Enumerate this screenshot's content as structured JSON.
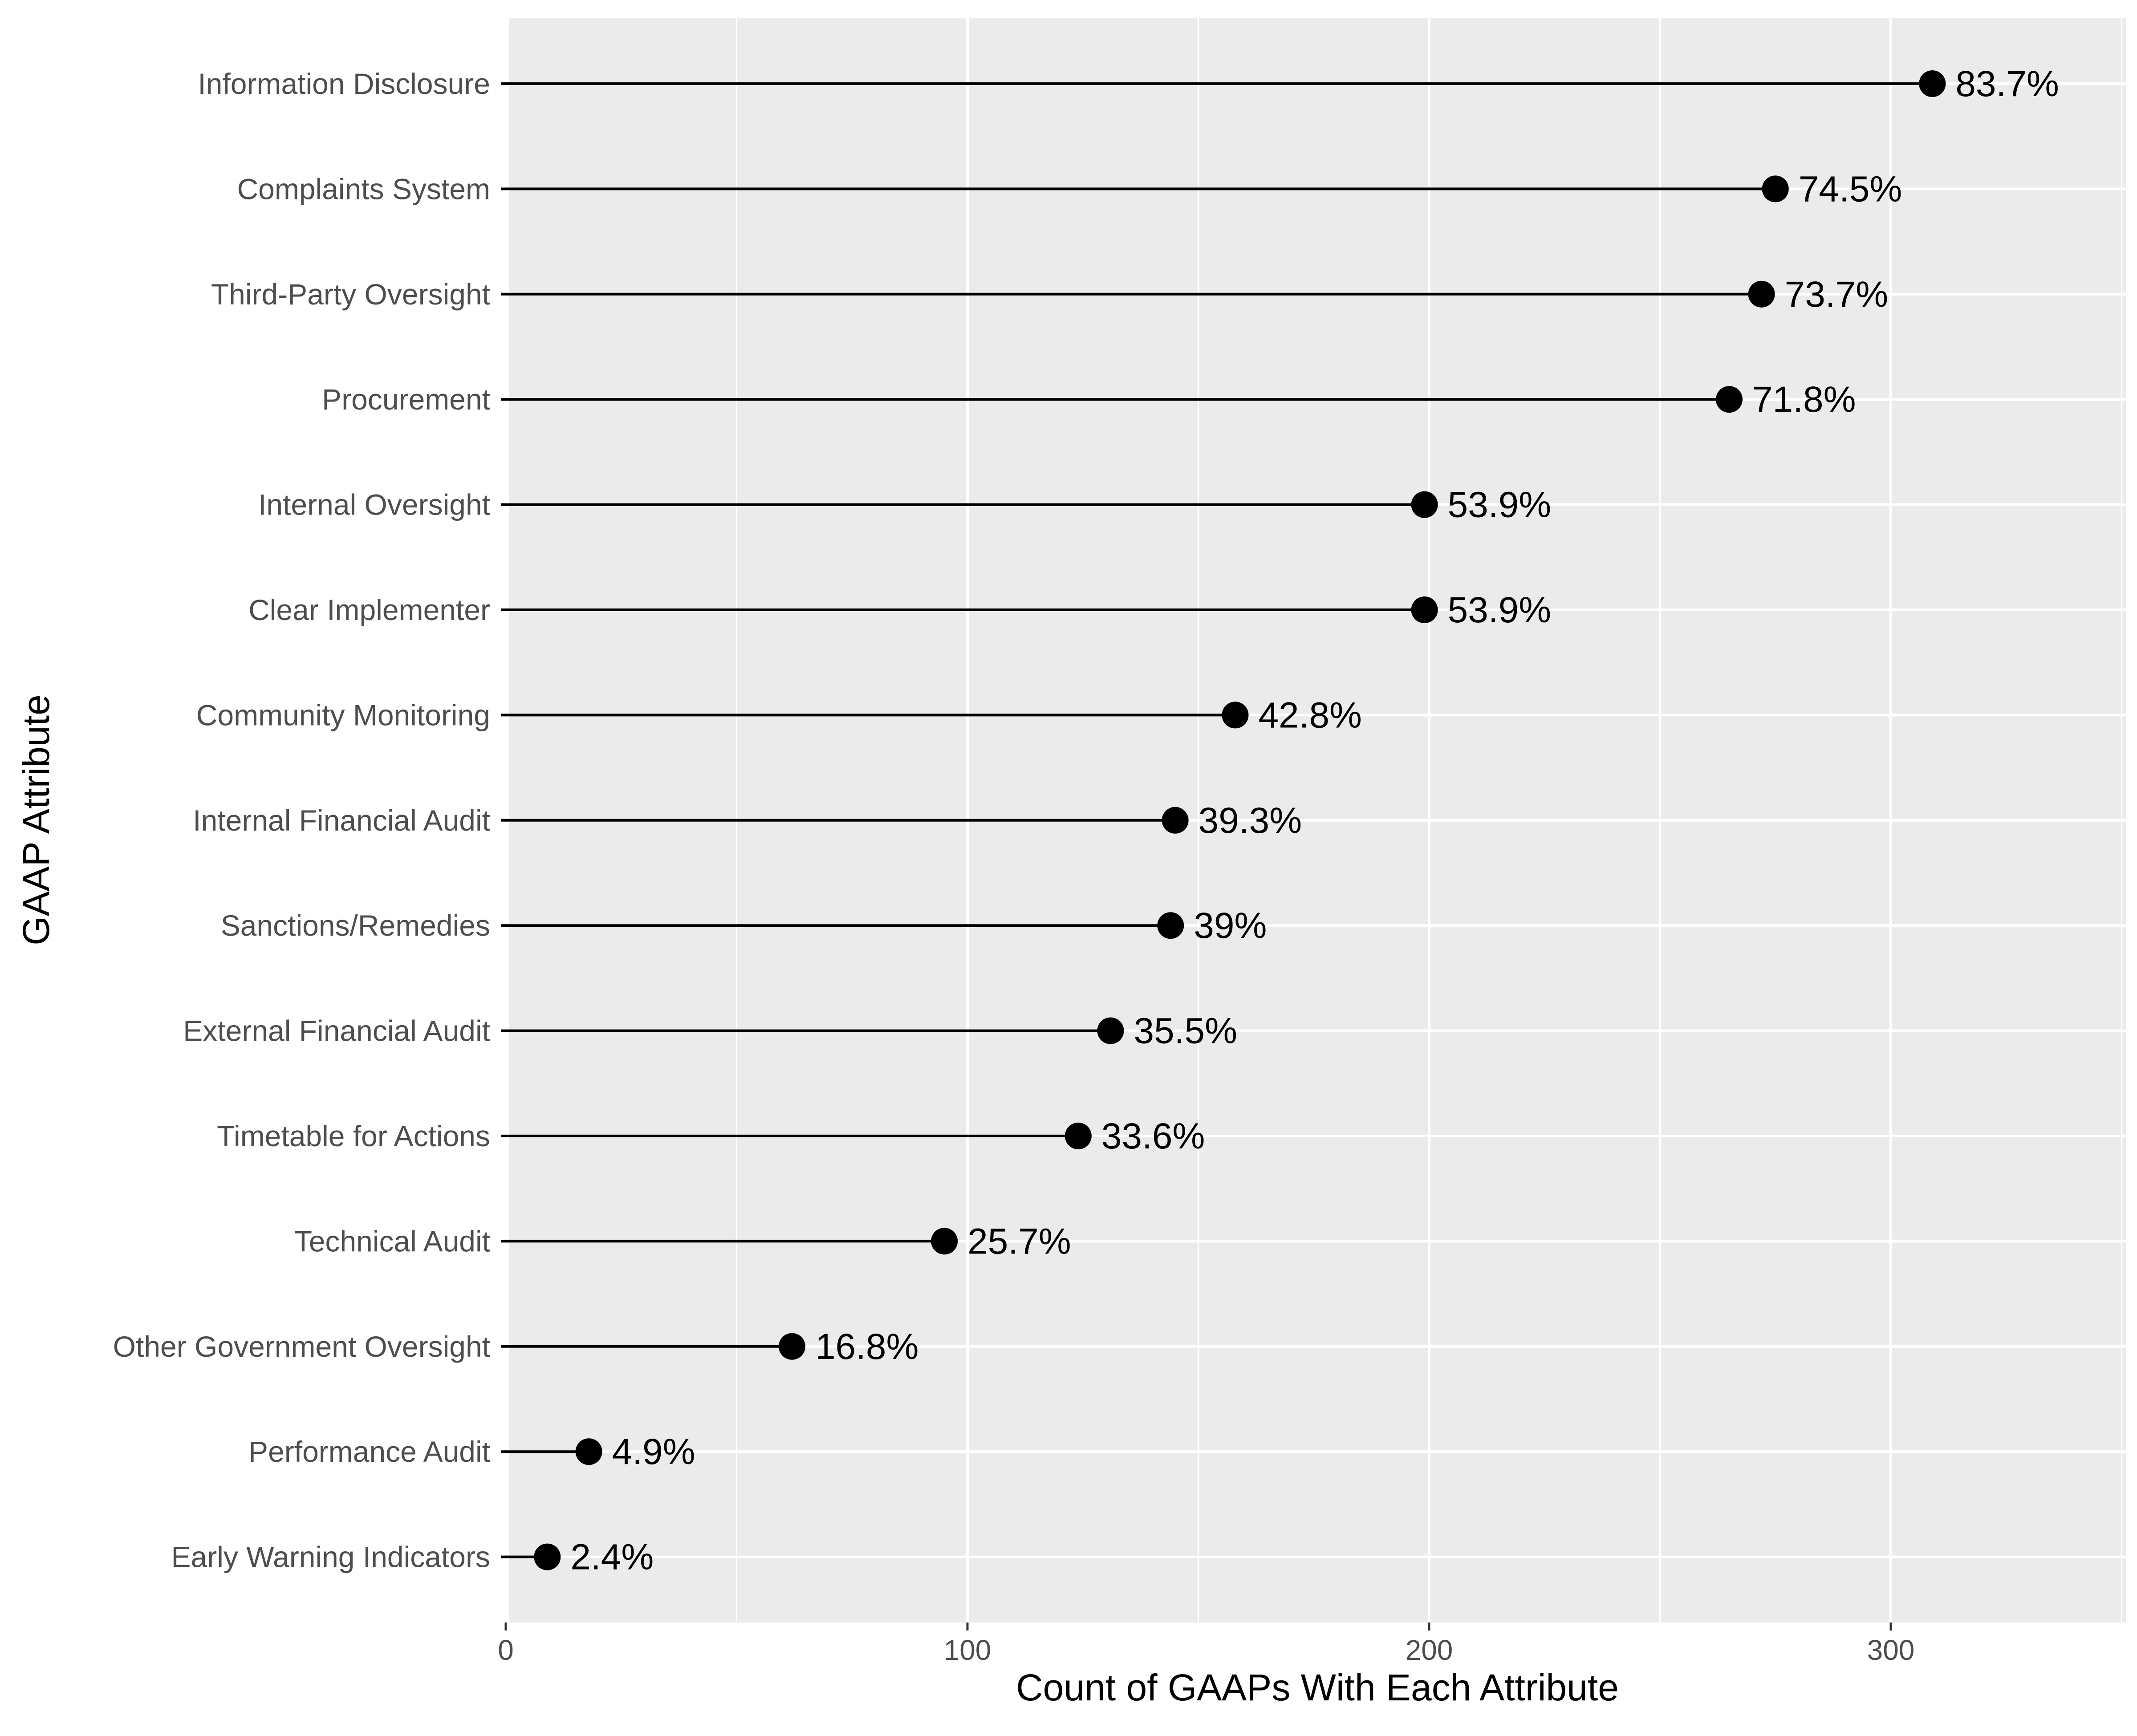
{
  "chart_data": {
    "type": "lollipop",
    "orientation": "horizontal",
    "xlabel": "Count of GAAPs With Each Attribute",
    "ylabel": "GAAP Attribute",
    "xlim": [
      0,
      350
    ],
    "xticks": [
      0,
      100,
      200,
      300
    ],
    "grid": true,
    "background": "#ebebeb",
    "gridline_color": "#ffffff",
    "mark_color": "#000000",
    "categories": [
      "Information Disclosure",
      "Complaints System",
      "Third-Party Oversight",
      "Procurement",
      "Internal Oversight",
      "Clear Implementer",
      "Community Monitoring",
      "Internal Financial Audit",
      "Sanctions/Remedies",
      "External Financial Audit",
      "Timetable for Actions",
      "Technical Audit",
      "Other Government Oversight",
      "Performance Audit",
      "Early Warning Indicators"
    ],
    "values": [
      309,
      275,
      272,
      265,
      199,
      199,
      158,
      145,
      144,
      131,
      124,
      95,
      62,
      18,
      9
    ],
    "labels": [
      "83.7%",
      "74.5%",
      "73.7%",
      "71.8%",
      "53.9%",
      "53.9%",
      "42.8%",
      "39.3%",
      "39%",
      "35.5%",
      "33.6%",
      "25.7%",
      "16.8%",
      "4.9%",
      "2.4%"
    ]
  }
}
